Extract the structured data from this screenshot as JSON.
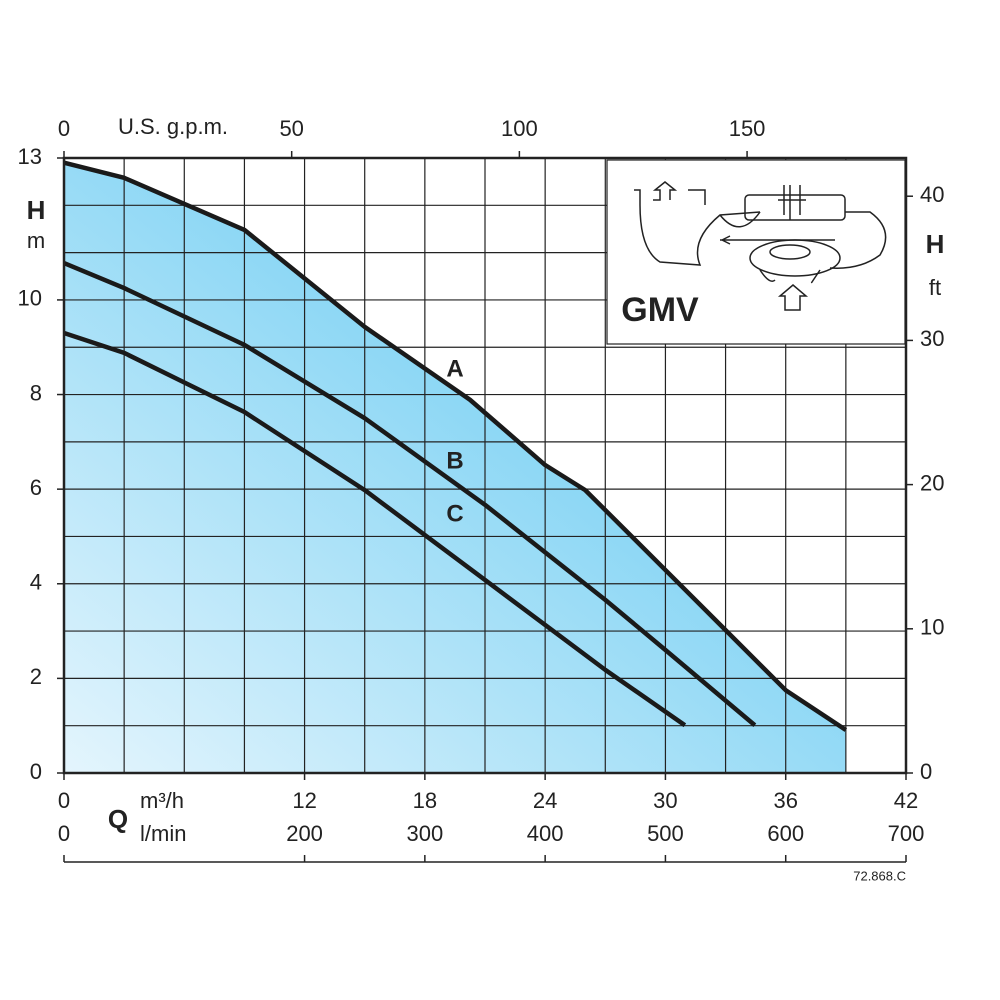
{
  "chart_data": {
    "type": "line",
    "model": "GMV",
    "code": "72.868.C",
    "xlabel": "Q",
    "xunit": "m³/h",
    "ylabel": "H",
    "yunit": "m",
    "y2label": "H",
    "y2unit": "ft",
    "x2label": "U.S. g.p.m.",
    "x3unit": "l/min",
    "xlim": [
      0,
      42
    ],
    "xticks": [
      0,
      12,
      18,
      24,
      30,
      36,
      42
    ],
    "xgrid": [
      0,
      3,
      6,
      9,
      12,
      15,
      18,
      21,
      24,
      27,
      30,
      33,
      36,
      39,
      42
    ],
    "ylim": [
      0,
      13
    ],
    "yticks": [
      0,
      2,
      4,
      6,
      8,
      10,
      13
    ],
    "ygrid": [
      0,
      1,
      2,
      3,
      4,
      5,
      6,
      7,
      8,
      9,
      10,
      11,
      12,
      13
    ],
    "x2lim": [
      0,
      184.9
    ],
    "x2ticks": [
      0,
      50,
      100,
      150
    ],
    "x3lim": [
      0,
      700
    ],
    "x3ticks": [
      0,
      200,
      300,
      400,
      500,
      600,
      700
    ],
    "y2lim": [
      0,
      42.65
    ],
    "y2ticks": [
      0,
      10,
      20,
      30,
      40
    ],
    "grid": true,
    "series": [
      {
        "name": "A",
        "color": "#1a1a1a",
        "x": [
          0,
          3,
          9,
          15,
          20.25,
          24,
          26,
          30,
          33,
          36,
          39
        ],
        "values": [
          12.9,
          12.58,
          11.48,
          9.43,
          7.89,
          6.51,
          5.98,
          4.29,
          3.02,
          1.75,
          0.91
        ]
      },
      {
        "name": "B",
        "color": "#1a1a1a",
        "x": [
          0,
          3,
          9,
          15,
          21,
          27,
          30,
          34.46
        ],
        "values": [
          10.78,
          10.25,
          9.05,
          7.5,
          5.67,
          3.66,
          2.6,
          1.01
        ]
      },
      {
        "name": "C",
        "color": "#1a1a1a",
        "x": [
          0,
          3,
          9,
          15,
          21,
          27,
          30.97
        ],
        "values": [
          9.3,
          8.88,
          7.63,
          5.98,
          4.08,
          2.18,
          1.01
        ]
      }
    ]
  }
}
